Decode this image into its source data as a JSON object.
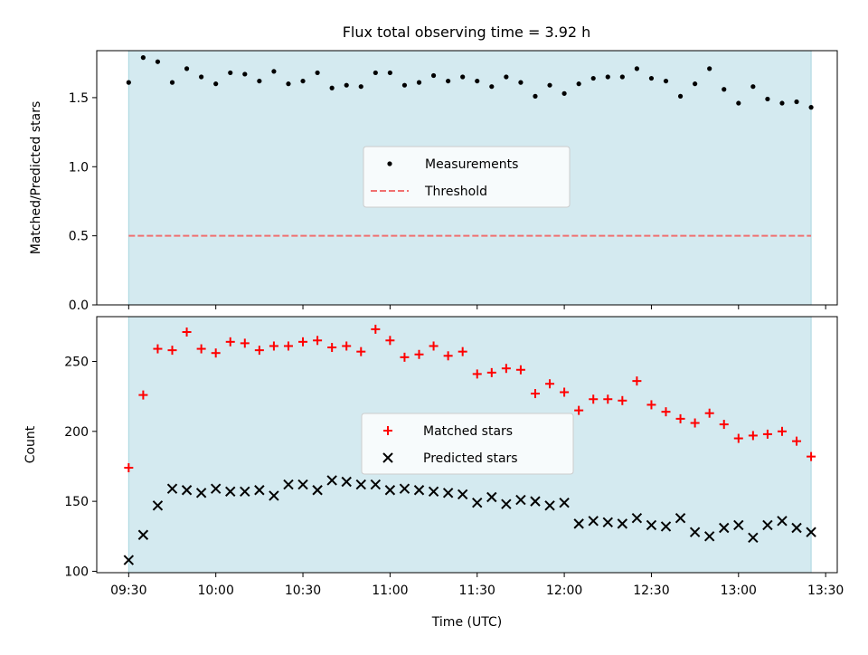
{
  "figure": {
    "title": "Flux total observing time = 3.92 h"
  },
  "chart_data": [
    {
      "type": "scatter",
      "panel": "top",
      "title": "Flux total observing time = 3.92 h",
      "ylabel": "Matched/Predicted stars",
      "xlabel": "",
      "xlim": [
        "09:19",
        "13:34"
      ],
      "ylim": [
        0,
        1.84
      ],
      "yticks": [
        0.0,
        0.5,
        1.0,
        1.5
      ],
      "ytick_labels": [
        "0.0",
        "0.5",
        "1.0",
        "1.5"
      ],
      "shaded_span": [
        "09:30",
        "13:25"
      ],
      "legend": {
        "position": "center",
        "entries": [
          "Measurements",
          "Threshold"
        ]
      },
      "threshold": {
        "name": "Threshold",
        "value": 0.5,
        "style": "dashed",
        "color": "#f07070"
      },
      "series": [
        {
          "name": "Measurements",
          "marker": "dot",
          "color": "#000000",
          "x": [
            "09:30",
            "09:35",
            "09:40",
            "09:45",
            "09:50",
            "09:55",
            "10:00",
            "10:05",
            "10:10",
            "10:15",
            "10:20",
            "10:25",
            "10:30",
            "10:35",
            "10:40",
            "10:45",
            "10:50",
            "10:55",
            "11:00",
            "11:05",
            "11:10",
            "11:15",
            "11:20",
            "11:25",
            "11:30",
            "11:35",
            "11:40",
            "11:45",
            "11:50",
            "11:55",
            "12:00",
            "12:05",
            "12:10",
            "12:15",
            "12:20",
            "12:25",
            "12:30",
            "12:35",
            "12:40",
            "12:45",
            "12:50",
            "12:55",
            "13:00",
            "13:05",
            "13:10",
            "13:15",
            "13:20",
            "13:25"
          ],
          "y": [
            1.61,
            1.79,
            1.76,
            1.61,
            1.71,
            1.65,
            1.6,
            1.68,
            1.67,
            1.62,
            1.69,
            1.6,
            1.62,
            1.68,
            1.57,
            1.59,
            1.58,
            1.68,
            1.68,
            1.59,
            1.61,
            1.66,
            1.62,
            1.65,
            1.62,
            1.58,
            1.65,
            1.61,
            1.51,
            1.59,
            1.53,
            1.6,
            1.64,
            1.65,
            1.65,
            1.71,
            1.64,
            1.62,
            1.51,
            1.6,
            1.71,
            1.56,
            1.46,
            1.58,
            1.49,
            1.46,
            1.47,
            1.43
          ]
        }
      ]
    },
    {
      "type": "scatter",
      "panel": "bottom",
      "ylabel": "Count",
      "xlabel": "Time (UTC)",
      "xlim": [
        "09:19",
        "13:34"
      ],
      "ylim": [
        99,
        282
      ],
      "yticks": [
        100,
        150,
        200,
        250
      ],
      "ytick_labels": [
        "100",
        "150",
        "200",
        "250"
      ],
      "xticks": [
        "09:30",
        "10:00",
        "10:30",
        "11:00",
        "11:30",
        "12:00",
        "12:30",
        "13:00",
        "13:30"
      ],
      "xtick_labels": [
        "09:30",
        "10:00",
        "10:30",
        "11:00",
        "11:30",
        "12:00",
        "12:30",
        "13:00",
        "13:30"
      ],
      "shaded_span": [
        "09:30",
        "13:25"
      ],
      "legend": {
        "position": "center",
        "entries": [
          "Matched stars",
          "Predicted stars"
        ]
      },
      "series": [
        {
          "name": "Matched stars",
          "marker": "plus",
          "color": "#ff0000",
          "x": [
            "09:30",
            "09:35",
            "09:40",
            "09:45",
            "09:50",
            "09:55",
            "10:00",
            "10:05",
            "10:10",
            "10:15",
            "10:20",
            "10:25",
            "10:30",
            "10:35",
            "10:40",
            "10:45",
            "10:50",
            "10:55",
            "11:00",
            "11:05",
            "11:10",
            "11:15",
            "11:20",
            "11:25",
            "11:30",
            "11:35",
            "11:40",
            "11:45",
            "11:50",
            "11:55",
            "12:00",
            "12:05",
            "12:10",
            "12:15",
            "12:20",
            "12:25",
            "12:30",
            "12:35",
            "12:40",
            "12:45",
            "12:50",
            "12:55",
            "13:00",
            "13:05",
            "13:10",
            "13:15",
            "13:20",
            "13:25"
          ],
          "y": [
            174,
            226,
            259,
            258,
            271,
            259,
            256,
            264,
            263,
            258,
            261,
            261,
            264,
            265,
            260,
            261,
            257,
            273,
            265,
            253,
            255,
            261,
            254,
            257,
            241,
            242,
            245,
            244,
            227,
            234,
            228,
            215,
            223,
            223,
            222,
            236,
            219,
            214,
            209,
            206,
            213,
            205,
            195,
            197,
            198,
            200,
            193,
            182
          ]
        },
        {
          "name": "Predicted stars",
          "marker": "x",
          "color": "#000000",
          "x": [
            "09:30",
            "09:35",
            "09:40",
            "09:45",
            "09:50",
            "09:55",
            "10:00",
            "10:05",
            "10:10",
            "10:15",
            "10:20",
            "10:25",
            "10:30",
            "10:35",
            "10:40",
            "10:45",
            "10:50",
            "10:55",
            "11:00",
            "11:05",
            "11:10",
            "11:15",
            "11:20",
            "11:25",
            "11:30",
            "11:35",
            "11:40",
            "11:45",
            "11:50",
            "11:55",
            "12:00",
            "12:05",
            "12:10",
            "12:15",
            "12:20",
            "12:25",
            "12:30",
            "12:35",
            "12:40",
            "12:45",
            "12:50",
            "12:55",
            "13:00",
            "13:05",
            "13:10",
            "13:15",
            "13:20",
            "13:25"
          ],
          "y": [
            108,
            126,
            147,
            159,
            158,
            156,
            159,
            157,
            157,
            158,
            154,
            162,
            162,
            158,
            165,
            164,
            162,
            162,
            158,
            159,
            158,
            157,
            156,
            155,
            149,
            153,
            148,
            151,
            150,
            147,
            149,
            134,
            136,
            135,
            134,
            138,
            133,
            132,
            138,
            128,
            125,
            131,
            133,
            124,
            133,
            136,
            131,
            128
          ]
        }
      ]
    }
  ]
}
